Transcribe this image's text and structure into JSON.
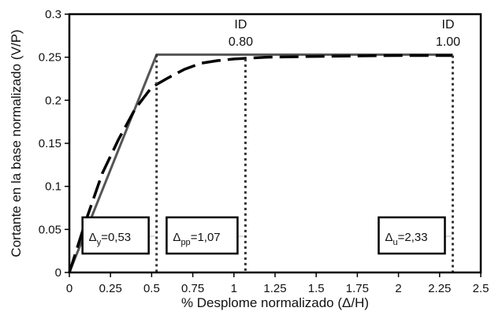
{
  "chart_data": {
    "type": "line",
    "xlabel": "% Desplome normalizado (Δ/H)",
    "ylabel": "Cortante en la base normalizado (V/P)",
    "xlim": [
      0,
      2.5
    ],
    "ylim": [
      0,
      0.3
    ],
    "x_ticks": [
      "0",
      "0.25",
      "0.5",
      "0.75",
      "1",
      "1.25",
      "1.5",
      "1.75",
      "2",
      "2.25",
      "2.5"
    ],
    "y_ticks": [
      "0",
      "0.05",
      "0.1",
      "0.15",
      "0.2",
      "0.25",
      "0.3"
    ],
    "grid": false,
    "series": [
      {
        "style": "solid-grey",
        "color": "#555555",
        "points": [
          [
            0,
            0
          ],
          [
            0.53,
            0.253
          ],
          [
            2.33,
            0.253
          ]
        ]
      },
      {
        "style": "dashed-black",
        "color": "#000000",
        "points": [
          [
            0,
            0
          ],
          [
            0.1,
            0.06
          ],
          [
            0.2,
            0.115
          ],
          [
            0.3,
            0.155
          ],
          [
            0.4,
            0.19
          ],
          [
            0.5,
            0.215
          ],
          [
            0.6,
            0.226
          ],
          [
            0.7,
            0.236
          ],
          [
            0.8,
            0.243
          ],
          [
            0.9,
            0.246
          ],
          [
            1.0,
            0.248
          ],
          [
            1.2,
            0.25
          ],
          [
            1.5,
            0.251
          ],
          [
            2.0,
            0.252
          ],
          [
            2.33,
            0.252
          ]
        ]
      }
    ],
    "vertical_markers": [
      {
        "x": 0.53,
        "y_top": 0.253
      },
      {
        "x": 1.07,
        "y_top": 0.248
      },
      {
        "x": 2.33,
        "y_top": 0.252
      }
    ],
    "id_labels": [
      {
        "title": "ID",
        "value": "0.80",
        "x": 1.07
      },
      {
        "title": "ID",
        "value": "1.00",
        "x": 2.33
      }
    ],
    "boxes": [
      {
        "symbol": "Δ",
        "sub": "y",
        "rest": "=0,53",
        "x": 0.53
      },
      {
        "symbol": "Δ",
        "sub": "pp",
        "rest": "=1,07",
        "x": 1.07
      },
      {
        "symbol": "Δ",
        "sub": "u",
        "rest": "=2,33",
        "x": 2.33
      }
    ]
  }
}
